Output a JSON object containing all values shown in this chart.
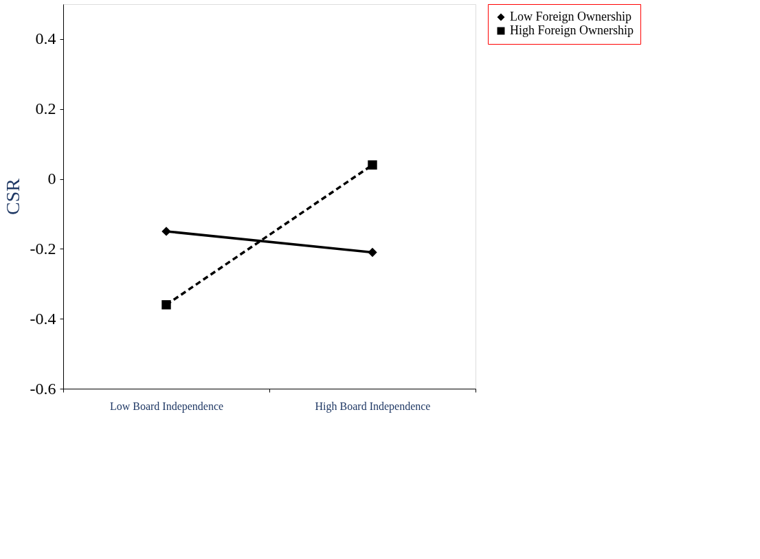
{
  "chart_data": {
    "type": "line",
    "ylabel": "CSR",
    "categories": [
      "Low Board Independence",
      "High Board Independence"
    ],
    "series": [
      {
        "name": "Low Foreign Ownership",
        "color": "#000000",
        "values": [
          -0.15,
          -0.21
        ],
        "marker": "diamond",
        "line_style": "solid"
      },
      {
        "name": "High Foreign Ownership",
        "color": "#000000",
        "values": [
          -0.36,
          0.04
        ],
        "marker": "square",
        "line_style": "dashed"
      }
    ],
    "ylim": [
      -0.6,
      0.5
    ],
    "yticks": [
      -0.6,
      -0.4,
      -0.2,
      0,
      0.2,
      0.4
    ],
    "grid": false,
    "legend": "right"
  }
}
